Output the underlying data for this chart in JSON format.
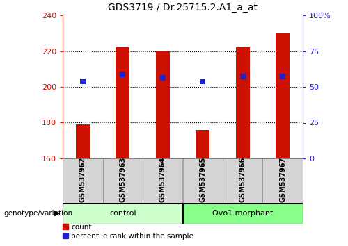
{
  "title": "GDS3719 / Dr.25715.2.A1_a_at",
  "samples": [
    "GSM537962",
    "GSM537963",
    "GSM537964",
    "GSM537965",
    "GSM537966",
    "GSM537967"
  ],
  "bar_tops": [
    179,
    222,
    220,
    176,
    222,
    230
  ],
  "bar_bottom": 160,
  "percentile_values": [
    203,
    207,
    205,
    203,
    206,
    206
  ],
  "ylim_left": [
    160,
    240
  ],
  "ylim_right": [
    0,
    100
  ],
  "yticks_left": [
    160,
    180,
    200,
    220,
    240
  ],
  "yticks_right": [
    0,
    25,
    50,
    75,
    100
  ],
  "ytick_labels_right": [
    "0",
    "25",
    "50",
    "75",
    "100%"
  ],
  "bar_color": "#cc1100",
  "marker_color": "#2222cc",
  "group_labels": [
    "control",
    "Ovo1 morphant"
  ],
  "group_ranges": [
    [
      0,
      3
    ],
    [
      3,
      6
    ]
  ],
  "group_colors_light": [
    "#ccffcc",
    "#88ff88"
  ],
  "legend_items": [
    "count",
    "percentile rank within the sample"
  ],
  "legend_colors": [
    "#cc1100",
    "#2222cc"
  ],
  "genotype_label": "genotype/variation",
  "left_axis_color": "#cc1100",
  "right_axis_color": "#2222cc",
  "bar_width": 0.35,
  "marker_size": 6
}
